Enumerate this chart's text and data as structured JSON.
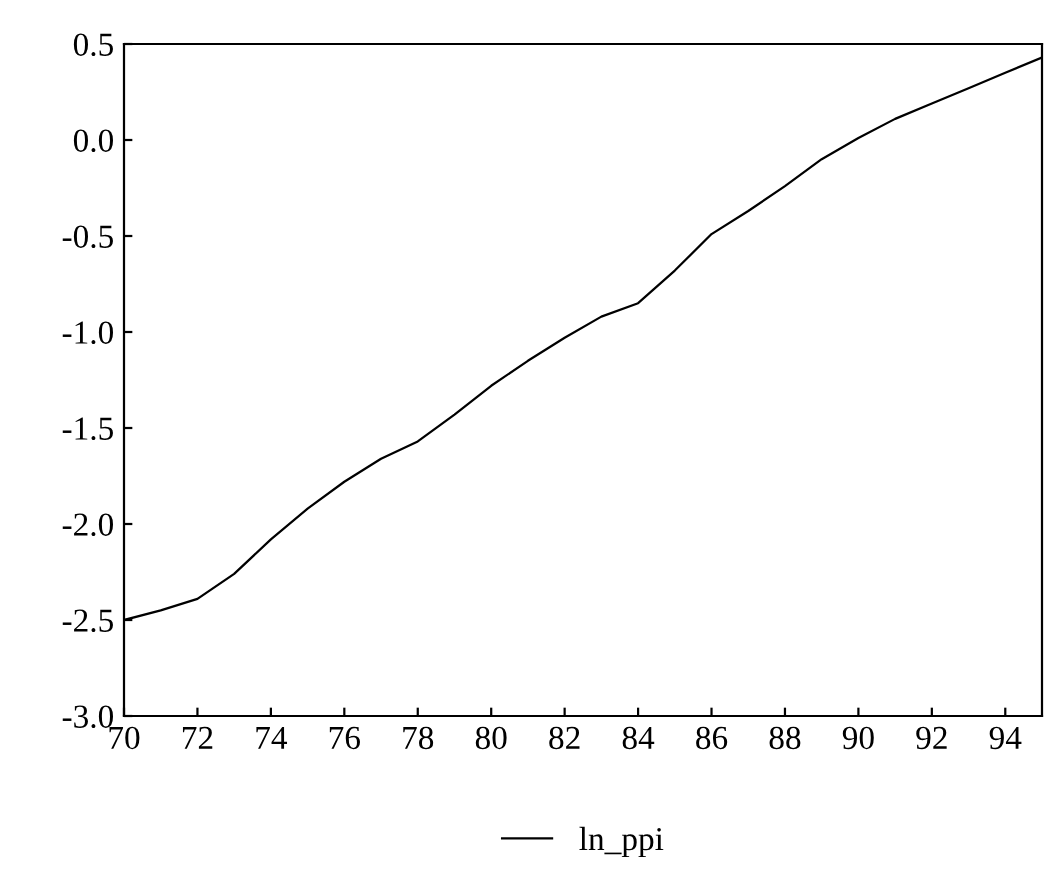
{
  "chart_data": {
    "type": "line",
    "x": [
      70,
      71,
      72,
      73,
      74,
      75,
      76,
      77,
      78,
      79,
      80,
      81,
      82,
      83,
      84,
      85,
      86,
      87,
      88,
      89,
      90,
      91,
      92,
      93,
      94,
      95
    ],
    "series": [
      {
        "name": "ln_ppi",
        "color": "#000000",
        "values": [
          -2.5,
          -2.45,
          -2.39,
          -2.26,
          -2.08,
          -1.92,
          -1.78,
          -1.66,
          -1.57,
          -1.43,
          -1.28,
          -1.15,
          -1.03,
          -0.92,
          -0.85,
          -0.68,
          -0.49,
          -0.37,
          -0.24,
          -0.1,
          0.01,
          0.11,
          0.19,
          0.27,
          0.35,
          0.43
        ]
      }
    ],
    "xlim": [
      70,
      95
    ],
    "xticks": [
      70,
      72,
      74,
      76,
      78,
      80,
      82,
      84,
      86,
      88,
      90,
      92,
      94
    ],
    "ylim": [
      -3.0,
      0.5
    ],
    "yticks": [
      {
        "value": -3.0,
        "label": "-3.0"
      },
      {
        "value": -2.5,
        "label": "-2.5"
      },
      {
        "value": -2.0,
        "label": "-2.0"
      },
      {
        "value": -1.5,
        "label": "-1.5"
      },
      {
        "value": -1.0,
        "label": "-1.0"
      },
      {
        "value": -0.5,
        "label": "-0.5"
      },
      {
        "value": 0.0,
        "label": "0.0"
      },
      {
        "value": 0.5,
        "label": "0.5"
      }
    ],
    "legend": "bottom",
    "grid": false,
    "marker": "none",
    "line_style": "solid"
  }
}
